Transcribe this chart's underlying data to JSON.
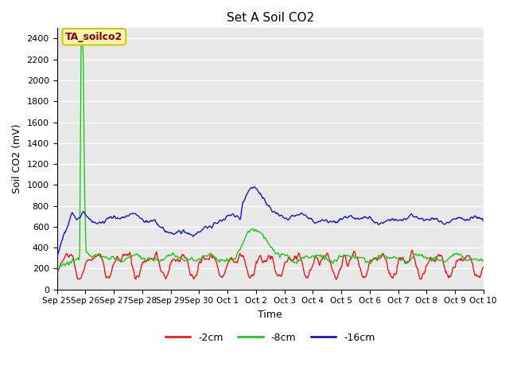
{
  "title": "Set A Soil CO2",
  "xlabel": "Time",
  "ylabel": "Soil CO2 (mV)",
  "ylim": [
    0,
    2500
  ],
  "bg_color": "#e8e8e8",
  "annotation_text": "TA_soilco2",
  "annotation_bg": "#f5f5b0",
  "annotation_border": "#cccc00",
  "annotation_text_color": "#8b0000",
  "legend_labels": [
    "-2cm",
    "-8cm",
    "-16cm"
  ],
  "legend_colors": [
    "#ff0000",
    "#00cc00",
    "#0000cc"
  ],
  "tick_labels": [
    "Sep 25",
    "Sep 26",
    "Sep 27",
    "Sep 28",
    "Sep 29",
    "Sep 30",
    "Oct 1",
    "Oct 2",
    "Oct 3",
    "Oct 4",
    "Oct 5",
    "Oct 6",
    "Oct 7",
    "Oct 8",
    "Oct 9",
    "Oct 10"
  ]
}
